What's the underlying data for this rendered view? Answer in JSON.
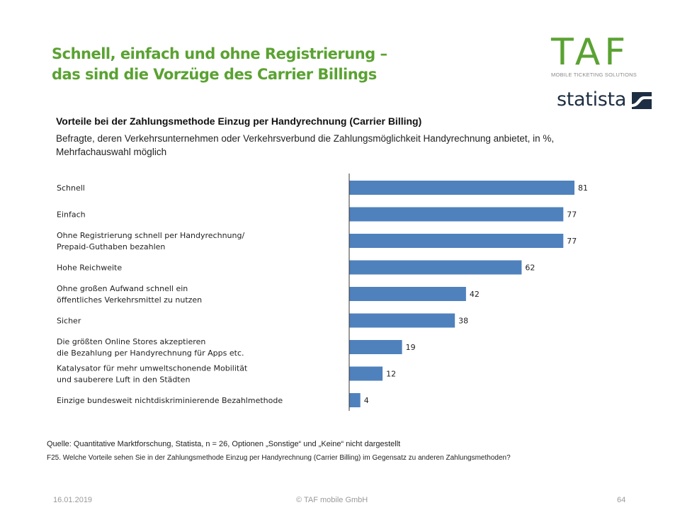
{
  "header": {
    "title_line1": "Schnell, einfach und ohne Registrierung –",
    "title_line2": "das sind die Vorzüge des Carrier Billings"
  },
  "logos": {
    "taf_word": "TAF",
    "taf_tagline": "MOBILE TICKETING SOLUTIONS",
    "statista_word": "statista",
    "brand_green": "#5aa232",
    "statista_navy": "#1e2f44"
  },
  "chart_data": {
    "type": "bar",
    "orientation": "horizontal",
    "title": "Vorteile bei der Zahlungsmethode Einzug per Handyrechnung (Carrier Billing)",
    "subtitle_line1": "Befragte, deren Verkehrsunternehmen oder Verkehrsverbund die Zahlungsmöglichkeit Handyrechnung anbietet, in %,",
    "subtitle_line2": "Mehrfachauswahl möglich",
    "categories": [
      [
        "Schnell"
      ],
      [
        "Einfach"
      ],
      [
        "Ohne  Registrierung schnell per Handyrechnung/",
        "Prepaid-Guthaben  bezahlen"
      ],
      [
        "Hohe Reichweite"
      ],
      [
        "Ohne  großen Aufwand  schnell ein",
        "öffentliches  Verkehrsmittel  zu nutzen"
      ],
      [
        "Sicher"
      ],
      [
        "Die größten Online Stores akzeptieren",
        "die Bezahlung  per Handyrechnung  für Apps etc."
      ],
      [
        "Katalysator für mehr umweltschonende  Mobilität",
        "und sauberere Luft  in den Städten"
      ],
      [
        "Einzige bundesweit nichtdiskriminierende  Bezahlmethode"
      ]
    ],
    "values": [
      81,
      77,
      77,
      62,
      42,
      38,
      19,
      12,
      4
    ],
    "xlim": [
      0,
      100
    ],
    "grid": false,
    "bar_color": "#4f81bd"
  },
  "notes": {
    "source": "Quelle: Quantitative Marktforschung, Statista, n = 26, Optionen „Sonstige“ und „Keine“ nicht dargestellt",
    "question": "F25. Welche Vorteile sehen Sie in der Zahlungsmethode Einzug per Handyrechnung (Carrier Billing) im Gegensatz zu anderen Zahlungsmethoden?"
  },
  "footer": {
    "date": "16.01.2019",
    "copyright": "© TAF mobile GmbH",
    "page": "64"
  }
}
